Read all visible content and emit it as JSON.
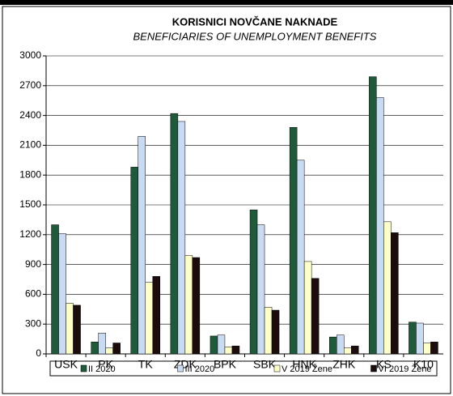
{
  "chart_data": {
    "type": "bar",
    "title": "KORISNICI NOVČANE NAKNADE",
    "subtitle": "BENEFICIARIES OF UNEMPLOYMENT BENEFITS",
    "categories": [
      "USK",
      "PK",
      "TK",
      "ZDK",
      "BPK",
      "SBK",
      "HNK",
      "ZHK",
      "KS",
      "K10"
    ],
    "series": [
      {
        "name": "II 2020",
        "color": "#1f5a3a",
        "values": [
          1300,
          120,
          1880,
          2420,
          180,
          1450,
          2280,
          170,
          2790,
          320
        ]
      },
      {
        "name": "III 2020",
        "color": "#c9daf3",
        "values": [
          1210,
          210,
          2190,
          2340,
          190,
          1300,
          1950,
          190,
          2580,
          310
        ]
      },
      {
        "name": "V 2019 Žene",
        "color": "#ffffc8",
        "values": [
          510,
          60,
          720,
          990,
          70,
          470,
          930,
          60,
          1330,
          110
        ]
      },
      {
        "name": "VI 2019 Žene",
        "color": "#1c0c0c",
        "values": [
          490,
          110,
          780,
          970,
          80,
          440,
          760,
          80,
          1220,
          120
        ]
      }
    ],
    "ylim": [
      0,
      3000
    ],
    "yticks": [
      0,
      300,
      600,
      900,
      1200,
      1500,
      1800,
      2100,
      2400,
      2700,
      3000
    ],
    "grid": true,
    "legend": "bottom"
  }
}
